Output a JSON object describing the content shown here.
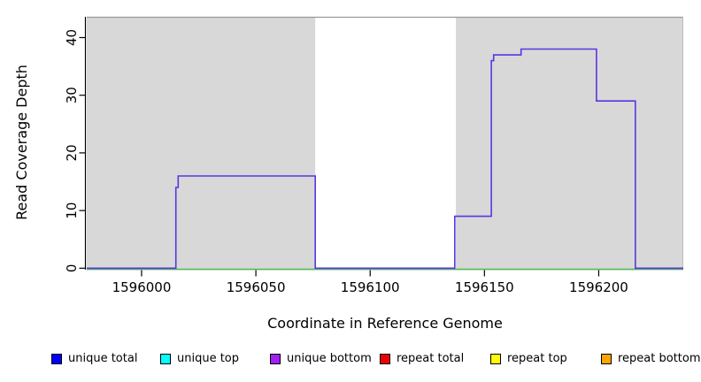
{
  "chart_data": {
    "type": "line",
    "subtype": "step-coverage",
    "title": "",
    "xlabel": "Coordinate in Reference Genome",
    "ylabel": "Read Coverage Depth",
    "xlim": [
      1595976,
      1596237
    ],
    "ylim": [
      0,
      43.6
    ],
    "x_ticks": [
      1596000,
      1596050,
      1596100,
      1596150,
      1596200
    ],
    "y_ticks": [
      0,
      10,
      20,
      30,
      40
    ],
    "grid": false,
    "background_regions": [
      {
        "name": "covered-region-left",
        "x0": 1595976,
        "x1": 1596076,
        "fill": "#d8d8d8"
      },
      {
        "name": "gap-region",
        "x0": 1596076,
        "x1": 1596137.5,
        "fill": "#ffffff"
      },
      {
        "name": "covered-region-right",
        "x0": 1596137.5,
        "x1": 1596237,
        "fill": "#d8d8d8"
      }
    ],
    "series": [
      {
        "name": "zero-depth-line",
        "color": "#55b855",
        "step_points": [
          [
            1595976,
            0
          ],
          [
            1596237,
            0
          ]
        ]
      },
      {
        "name": "unique-coverage-step-line",
        "color": "#5a35e0",
        "step_points": [
          [
            1595976,
            0
          ],
          [
            1596015,
            0
          ],
          [
            1596015,
            14
          ],
          [
            1596016,
            14
          ],
          [
            1596016,
            16
          ],
          [
            1596076,
            16
          ],
          [
            1596076,
            0
          ],
          [
            1596137,
            0
          ],
          [
            1596137,
            9
          ],
          [
            1596153,
            9
          ],
          [
            1596153,
            36
          ],
          [
            1596154,
            36
          ],
          [
            1596154,
            37
          ],
          [
            1596166,
            37
          ],
          [
            1596166,
            38
          ],
          [
            1596199,
            38
          ],
          [
            1596199,
            29
          ],
          [
            1596216,
            29
          ],
          [
            1596216,
            0
          ],
          [
            1596237,
            0
          ]
        ]
      }
    ],
    "border_color": "#999999",
    "axis_color": "#000000",
    "legend_position": "bottom"
  },
  "legend": {
    "items": [
      {
        "label": "unique total",
        "color": "#0000ff"
      },
      {
        "label": "unique top",
        "color": "#00ffff"
      },
      {
        "label": "unique bottom",
        "color": "#a020f0"
      },
      {
        "label": "repeat total",
        "color": "#ee0000"
      },
      {
        "label": "repeat top",
        "color": "#ffff00"
      },
      {
        "label": "repeat bottom",
        "color": "#ffa500"
      }
    ]
  }
}
